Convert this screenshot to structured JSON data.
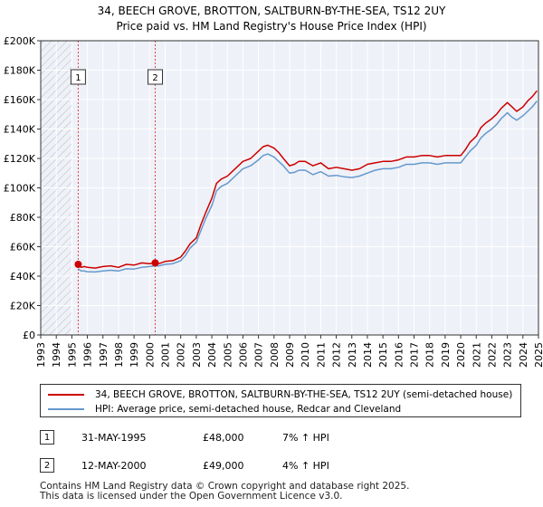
{
  "chart_data": {
    "type": "line",
    "title": "34, BEECH GROVE, BROTTON, SALTBURN-BY-THE-SEA, TS12 2UY",
    "subtitle": "Price paid vs. HM Land Registry's House Price Index (HPI)",
    "xlim": [
      1993,
      2025
    ],
    "ylim": [
      0,
      200000
    ],
    "x_ticks": [
      "1993",
      "1994",
      "1995",
      "1996",
      "1997",
      "1998",
      "1999",
      "2000",
      "2001",
      "2002",
      "2003",
      "2004",
      "2005",
      "2006",
      "2007",
      "2008",
      "2009",
      "2010",
      "2011",
      "2012",
      "2013",
      "2014",
      "2015",
      "2016",
      "2017",
      "2018",
      "2019",
      "2020",
      "2021",
      "2022",
      "2023",
      "2024",
      "2025"
    ],
    "y_ticks": [
      {
        "value": 0,
        "label": "£0"
      },
      {
        "value": 20000,
        "label": "£20K"
      },
      {
        "value": 40000,
        "label": "£40K"
      },
      {
        "value": 60000,
        "label": "£60K"
      },
      {
        "value": 80000,
        "label": "£80K"
      },
      {
        "value": 100000,
        "label": "£100K"
      },
      {
        "value": 120000,
        "label": "£120K"
      },
      {
        "value": 140000,
        "label": "£140K"
      },
      {
        "value": 160000,
        "label": "£160K"
      },
      {
        "value": 180000,
        "label": "£180K"
      },
      {
        "value": 200000,
        "label": "£200K"
      }
    ],
    "grid": true,
    "hatched_region": [
      1993,
      1995.0
    ],
    "series": [
      {
        "name": "34, BEECH GROVE, BROTTON, SALTBURN-BY-THE-SEA, TS12 2UY (semi-detached house)",
        "color": "#cc0000",
        "x": [
          1995.41,
          1995.6,
          1995.8,
          1996.0,
          1996.5,
          1997.0,
          1997.5,
          1998.0,
          1998.5,
          1999.0,
          1999.5,
          2000.0,
          2000.36,
          2000.6,
          2001.0,
          2001.5,
          2002.0,
          2002.3,
          2002.6,
          2003.0,
          2003.3,
          2003.6,
          2004.0,
          2004.3,
          2004.6,
          2005.0,
          2005.5,
          2006.0,
          2006.5,
          2007.0,
          2007.3,
          2007.6,
          2008.0,
          2008.3,
          2008.6,
          2009.0,
          2009.3,
          2009.6,
          2010.0,
          2010.5,
          2011.0,
          2011.5,
          2012.0,
          2012.5,
          2013.0,
          2013.5,
          2014.0,
          2014.5,
          2015.0,
          2015.5,
          2016.0,
          2016.5,
          2017.0,
          2017.5,
          2018.0,
          2018.5,
          2019.0,
          2019.5,
          2020.0,
          2020.3,
          2020.6,
          2021.0,
          2021.3,
          2021.6,
          2022.0,
          2022.3,
          2022.6,
          2023.0,
          2023.3,
          2023.6,
          2024.0,
          2024.3,
          2024.6,
          2024.9
        ],
        "values": [
          48000,
          46000,
          46500,
          46000,
          45500,
          46500,
          47000,
          46000,
          48000,
          47500,
          49000,
          48500,
          49000,
          48500,
          50000,
          50500,
          53000,
          57000,
          62000,
          66000,
          75000,
          83000,
          93000,
          103000,
          106000,
          108000,
          113000,
          118000,
          120000,
          125000,
          128000,
          129000,
          127000,
          124000,
          120000,
          115000,
          116000,
          118000,
          118000,
          115000,
          117000,
          113000,
          114000,
          113000,
          112000,
          113000,
          116000,
          117000,
          118000,
          118000,
          119000,
          121000,
          121000,
          122000,
          122000,
          121000,
          122000,
          122000,
          122000,
          126000,
          131000,
          135000,
          141000,
          144000,
          147000,
          150000,
          154000,
          158000,
          155000,
          152000,
          155000,
          159000,
          162000,
          166000
        ]
      },
      {
        "name": "HPI: Average price, semi-detached house, Redcar and Cleveland",
        "color": "#6699cc",
        "x": [
          1995.41,
          1995.6,
          1995.8,
          1996.0,
          1996.5,
          1997.0,
          1997.5,
          1998.0,
          1998.5,
          1999.0,
          1999.5,
          2000.0,
          2000.36,
          2000.6,
          2001.0,
          2001.5,
          2002.0,
          2002.3,
          2002.6,
          2003.0,
          2003.3,
          2003.6,
          2004.0,
          2004.3,
          2004.6,
          2005.0,
          2005.5,
          2006.0,
          2006.5,
          2007.0,
          2007.3,
          2007.6,
          2008.0,
          2008.3,
          2008.6,
          2009.0,
          2009.3,
          2009.6,
          2010.0,
          2010.5,
          2011.0,
          2011.5,
          2012.0,
          2012.5,
          2013.0,
          2013.5,
          2014.0,
          2014.5,
          2015.0,
          2015.5,
          2016.0,
          2016.5,
          2017.0,
          2017.5,
          2018.0,
          2018.5,
          2019.0,
          2019.5,
          2020.0,
          2020.3,
          2020.6,
          2021.0,
          2021.3,
          2021.6,
          2022.0,
          2022.3,
          2022.6,
          2023.0,
          2023.3,
          2023.6,
          2024.0,
          2024.3,
          2024.6,
          2024.9
        ],
        "values": [
          45000,
          43500,
          43500,
          43000,
          42800,
          43500,
          44000,
          43500,
          45000,
          44800,
          46000,
          46500,
          47000,
          47000,
          48000,
          48500,
          50500,
          54000,
          59000,
          63000,
          71000,
          79000,
          88000,
          98000,
          101000,
          103000,
          108000,
          113000,
          115000,
          119000,
          122000,
          123000,
          121000,
          118000,
          115000,
          110000,
          110500,
          112000,
          112000,
          109000,
          111000,
          108000,
          108500,
          107500,
          107000,
          108000,
          110000,
          112000,
          113000,
          113000,
          114000,
          116000,
          116000,
          117000,
          117000,
          116000,
          117000,
          117000,
          117000,
          121000,
          125000,
          129000,
          134000,
          137000,
          140000,
          143000,
          147000,
          151000,
          148000,
          146000,
          149000,
          152000,
          155000,
          159000
        ]
      }
    ],
    "markers": [
      {
        "label": "1",
        "x": 1995.41,
        "value": 48000
      },
      {
        "label": "2",
        "x": 2000.36,
        "value": 49000
      }
    ]
  },
  "legend": {
    "entries": [
      {
        "label": "34, BEECH GROVE, BROTTON, SALTBURN-BY-THE-SEA, TS12 2UY (semi-detached house)",
        "color": "#cc0000"
      },
      {
        "label": "HPI: Average price, semi-detached house, Redcar and Cleveland",
        "color": "#6699cc"
      }
    ]
  },
  "transactions": [
    {
      "num": "1",
      "date": "31-MAY-1995",
      "price": "£48,000",
      "hpi": "7% ↑ HPI"
    },
    {
      "num": "2",
      "date": "12-MAY-2000",
      "price": "£49,000",
      "hpi": "4% ↑ HPI"
    }
  ],
  "footer": {
    "line1": "Contains HM Land Registry data © Crown copyright and database right 2025.",
    "line2": "This data is licensed under the Open Government Licence v3.0."
  }
}
